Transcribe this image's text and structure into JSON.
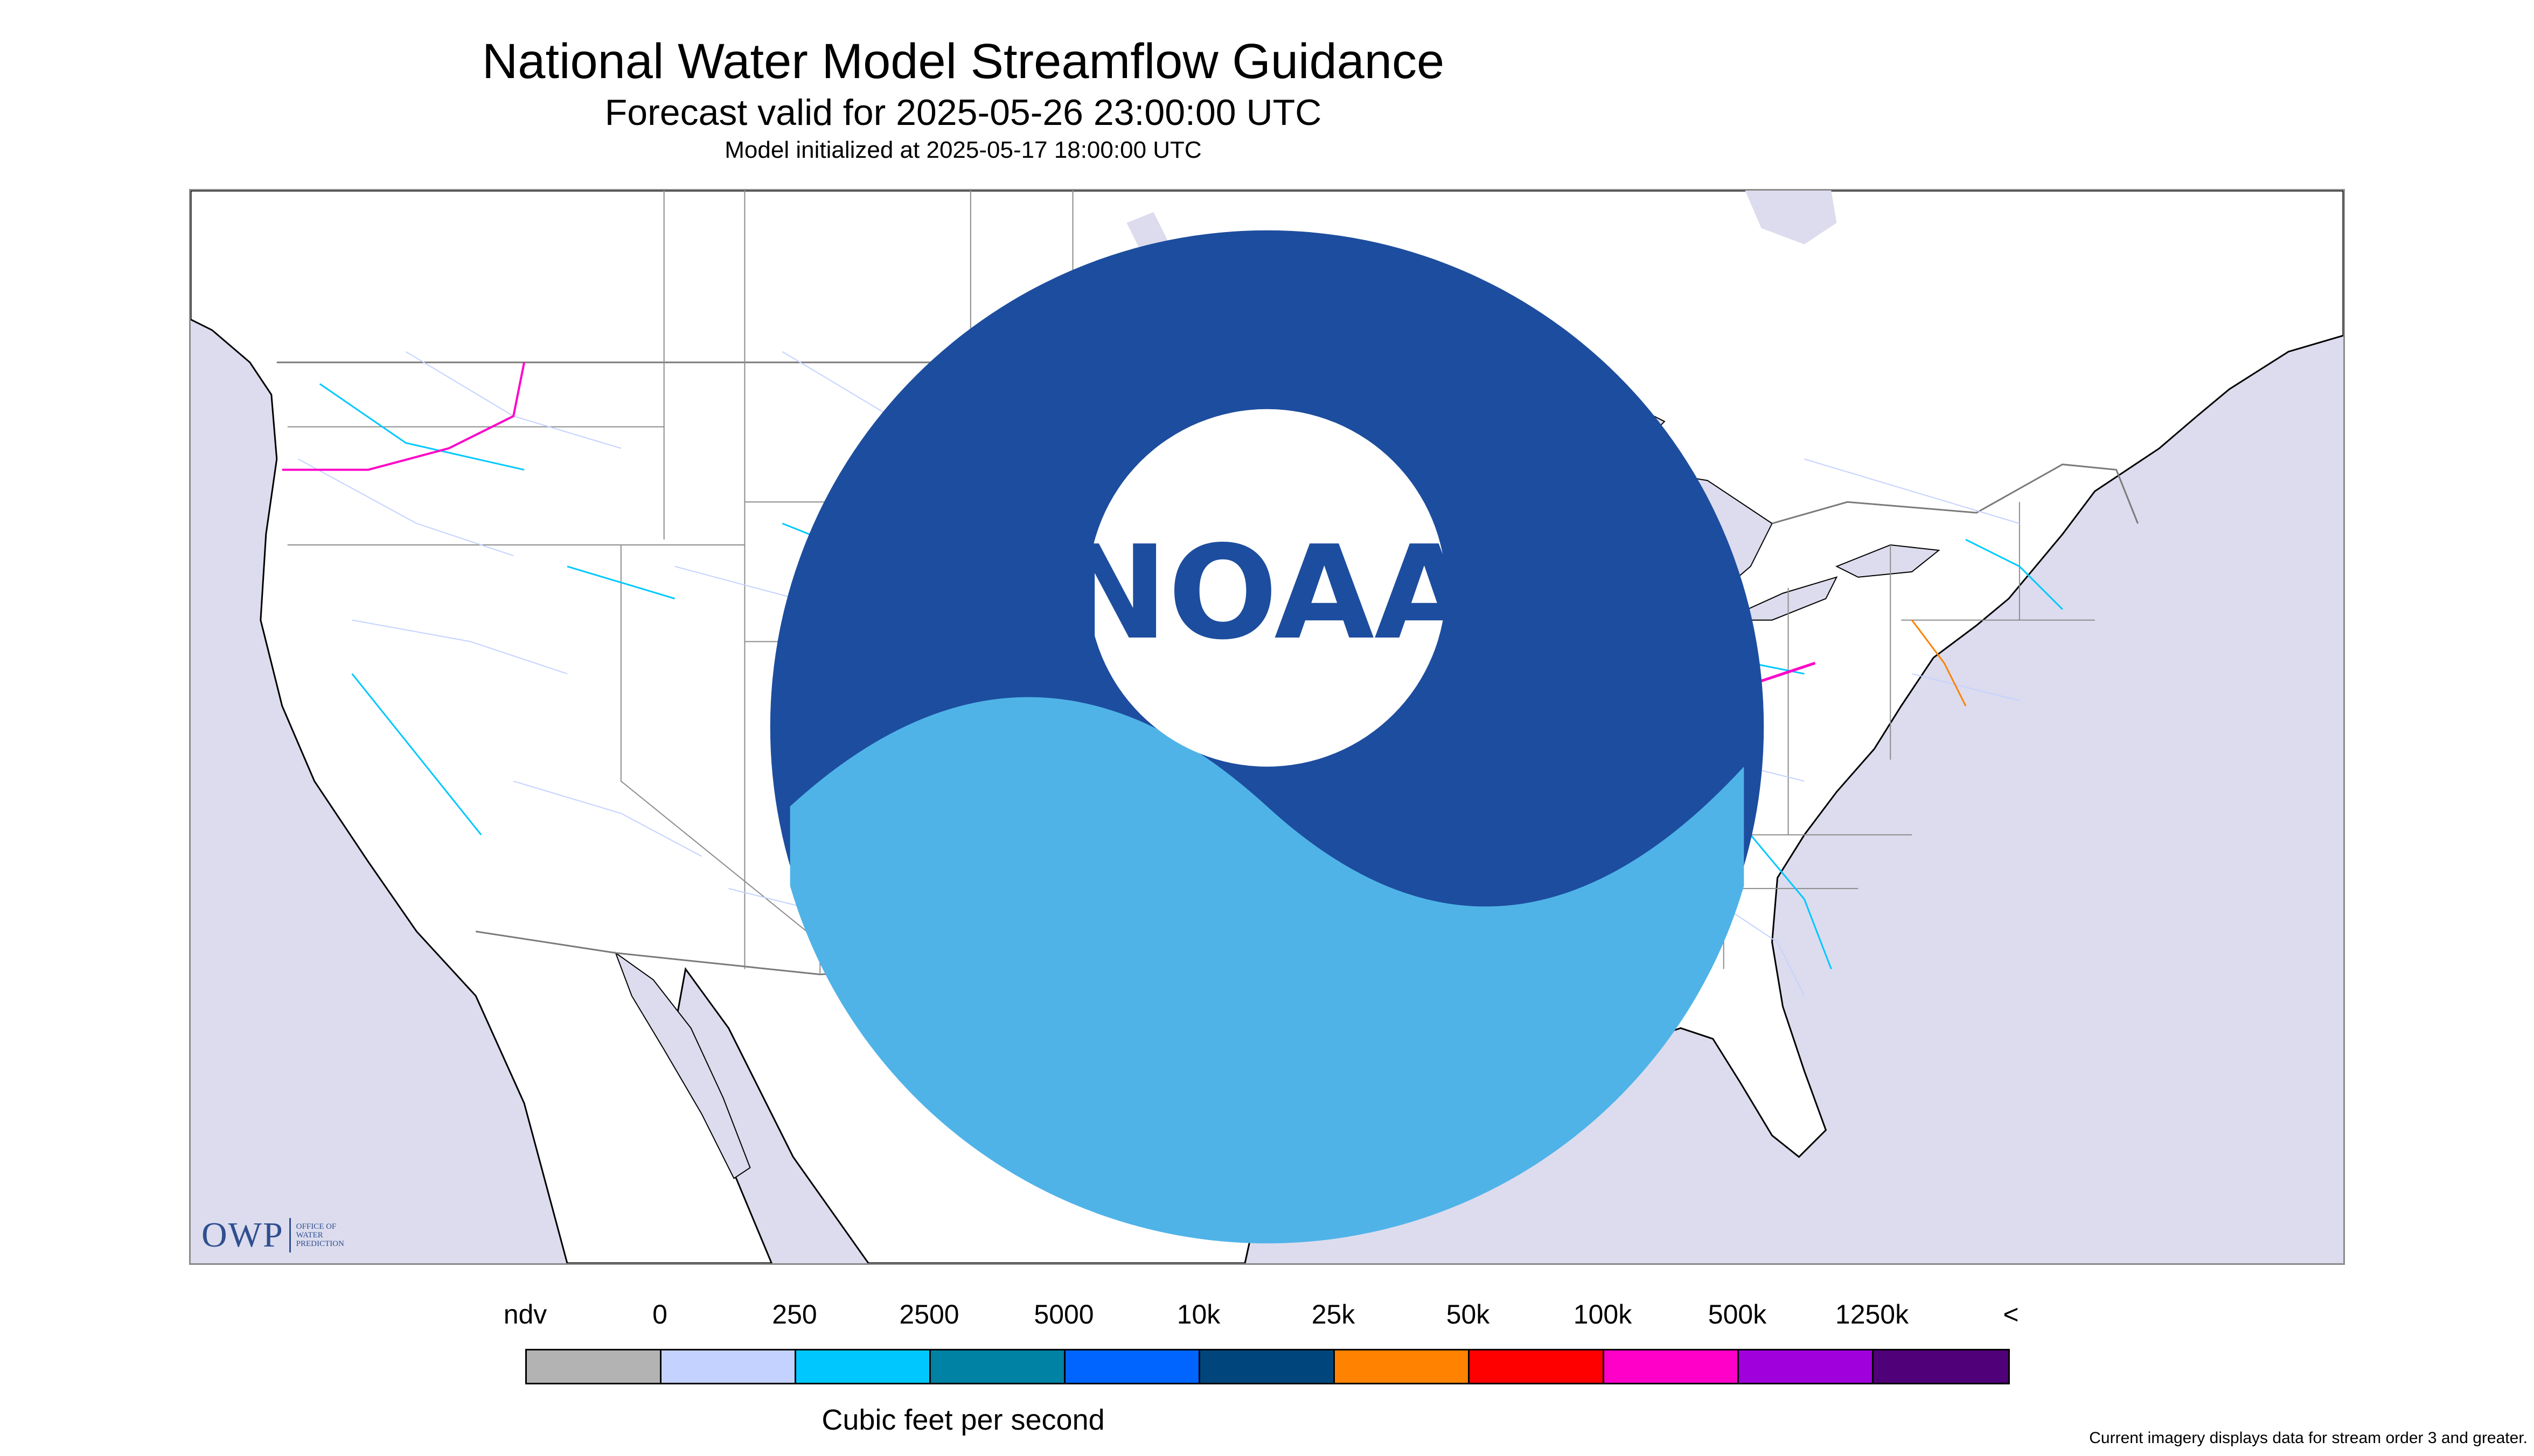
{
  "header": {
    "title": "National Water Model Streamflow Guidance",
    "subtitle": "Forecast valid for 2025-05-26 23:00:00 UTC",
    "init": "Model initialized at 2025-05-17 18:00:00 UTC"
  },
  "logos": {
    "owp_mark": "OWP",
    "owp_lines": [
      "OFFICE OF",
      "WATER",
      "PREDICTION"
    ],
    "noaa_text": "NOAA"
  },
  "colors": {
    "ocean_lakes": "#dcdcee",
    "land": "#ffffff",
    "state_borders": "#7a7a7a",
    "coastline": "#000000"
  },
  "legend": {
    "tick_labels": [
      "ndv",
      "0",
      "250",
      "2500",
      "5000",
      "10k",
      "25k",
      "50k",
      "100k",
      "500k",
      "1250k",
      "<"
    ],
    "swatches": [
      "#b3b3b3",
      "#c4d2ff",
      "#00c8ff",
      "#0082a5",
      "#0064ff",
      "#00467d",
      "#ff8200",
      "#ff0000",
      "#ff00c8",
      "#a000dc",
      "#500078"
    ],
    "units": "Cubic feet per second"
  },
  "footnote": "Current imagery displays data for stream order 3 and greater."
}
